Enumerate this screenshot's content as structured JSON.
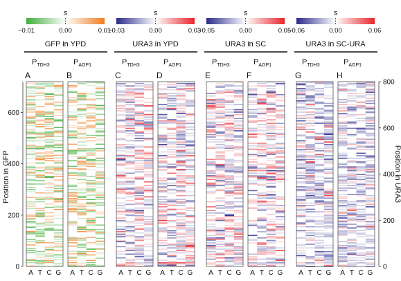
{
  "chart_data": {
    "type": "heatmap",
    "groups": [
      {
        "title": "GFP in YPD",
        "scale_symbol": "s",
        "scale": {
          "min": -0.01,
          "mid": 0.0,
          "max": 0.01,
          "labels": [
            "−0.01",
            "0.00",
            "0.01"
          ],
          "low_color": "#3fae3a",
          "high_color": "#f07d1e"
        },
        "panels": [
          "A",
          "B"
        ]
      },
      {
        "title": "URA3 in YPD",
        "scale_symbol": "s",
        "scale": {
          "min": -0.03,
          "mid": 0.0,
          "max": 0.03,
          "labels": [
            "−0.03",
            "0.00",
            "0.03"
          ],
          "low_color": "#2b2a8c",
          "high_color": "#e8242b"
        },
        "panels": [
          "C",
          "D"
        ]
      },
      {
        "title": "URA3 in SC",
        "scale_symbol": "s",
        "scale": {
          "min": -0.05,
          "mid": 0.0,
          "max": 0.05,
          "labels": [
            "−0.05",
            "0.00",
            "0.05"
          ],
          "low_color": "#2b2a8c",
          "high_color": "#e8242b"
        },
        "panels": [
          "E",
          "F"
        ]
      },
      {
        "title": "URA3 in SC-URA",
        "scale_symbol": "s",
        "scale": {
          "min": -0.06,
          "mid": 0.0,
          "max": 0.06,
          "labels": [
            "−0.06",
            "0.00",
            "0.06"
          ],
          "low_color": "#2b2a8c",
          "high_color": "#e8242b"
        },
        "panels": [
          "G",
          "H"
        ]
      }
    ],
    "panels": [
      {
        "letter": "A",
        "promoter": "P",
        "promoter_sub": "TDH3",
        "group": 0,
        "gene": "GFP",
        "seed": 11
      },
      {
        "letter": "B",
        "promoter": "P",
        "promoter_sub": "AGP1",
        "group": 0,
        "gene": "GFP",
        "seed": 23
      },
      {
        "letter": "C",
        "promoter": "P",
        "promoter_sub": "TDH3",
        "group": 1,
        "gene": "URA3",
        "seed": 37
      },
      {
        "letter": "D",
        "promoter": "P",
        "promoter_sub": "AGP1",
        "group": 1,
        "gene": "URA3",
        "seed": 41
      },
      {
        "letter": "E",
        "promoter": "P",
        "promoter_sub": "TDH3",
        "group": 2,
        "gene": "URA3",
        "seed": 53
      },
      {
        "letter": "F",
        "promoter": "P",
        "promoter_sub": "AGP1",
        "group": 2,
        "gene": "URA3",
        "seed": 67
      },
      {
        "letter": "G",
        "promoter": "P",
        "promoter_sub": "TDH3",
        "group": 3,
        "gene": "URA3",
        "seed": 71
      },
      {
        "letter": "H",
        "promoter": "P",
        "promoter_sub": "AGP1",
        "group": 3,
        "gene": "URA3",
        "seed": 89
      }
    ],
    "x_categories": [
      "A",
      "T",
      "C",
      "G"
    ],
    "left_axis": {
      "label": "Position in GFP",
      "ylim": [
        0,
        720
      ],
      "ticks": [
        0,
        200,
        400,
        600
      ]
    },
    "right_axis": {
      "label": "Position in URA3",
      "ylim": [
        0,
        800
      ],
      "ticks": [
        0,
        200,
        400,
        600,
        800
      ]
    },
    "grid": false
  }
}
